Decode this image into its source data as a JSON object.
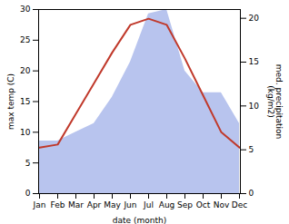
{
  "chart_data": {
    "type": "line",
    "categories": [
      "Jan",
      "Feb",
      "Mar",
      "Apr",
      "May",
      "Jun",
      "Jul",
      "Aug",
      "Sep",
      "Oct",
      "Nov",
      "Dec"
    ],
    "series": [
      {
        "type": "area",
        "axis": "y2",
        "color": "#b8c4ee",
        "values": [
          6.0,
          6.0,
          7.0,
          8.0,
          11.0,
          15.0,
          20.5,
          21.0,
          14.0,
          11.5,
          11.5,
          8.0
        ]
      },
      {
        "type": "line",
        "color": "#c0392b",
        "values": [
          7.5,
          8.0,
          13.0,
          18.0,
          23.0,
          27.5,
          28.5,
          27.5,
          22.0,
          16.0,
          10.0,
          7.5
        ]
      }
    ],
    "xlabel": "date (month)",
    "ylabel": "max temp (C)",
    "y2label": "med. precipitation\n(kg/m2)",
    "ylim": [
      0,
      30
    ],
    "yticks": [
      0,
      5,
      10,
      15,
      20,
      25,
      30
    ],
    "y2lim": [
      0,
      21
    ],
    "y2ticks": [
      0,
      5,
      10,
      15,
      20
    ],
    "grid": false
  }
}
